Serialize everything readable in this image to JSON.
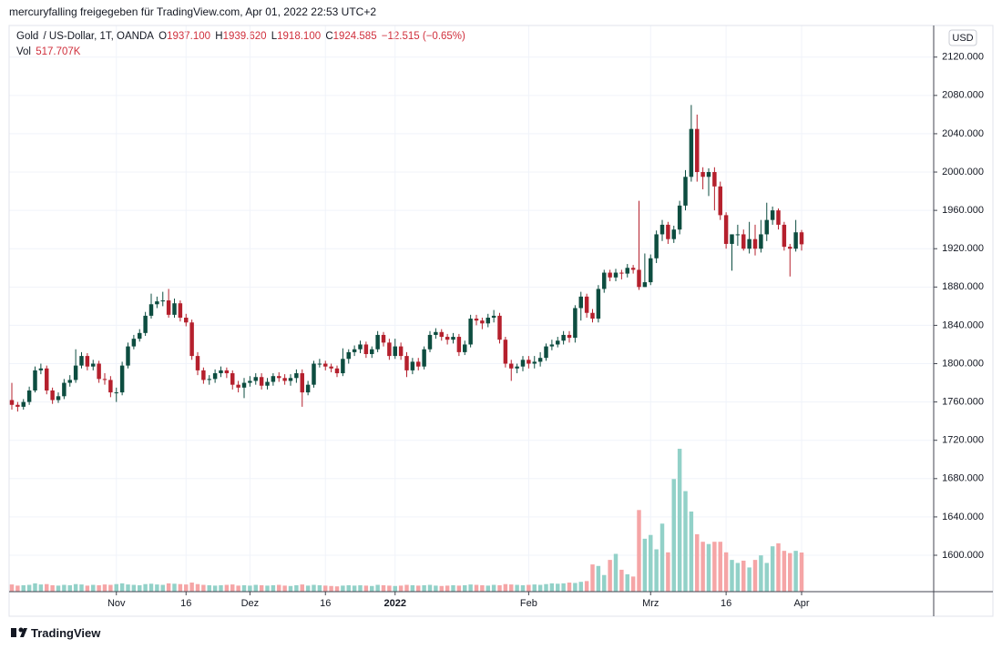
{
  "header": {
    "title": "mercuryfalling freigegeben für TradingView.com, Apr 01, 2022 22:53 UTC+2"
  },
  "legend": {
    "symbol": "Gold",
    "description": "/ US-Dollar, 1T, OANDA",
    "open_label": "O",
    "open": "1937.100",
    "high_label": "H",
    "high": "1939.620",
    "low_label": "L",
    "low": "1918.100",
    "close_label": "C",
    "close": "1924.585",
    "change": "−12.515 (−0.65%)",
    "volume_label": "Vol",
    "volume": "517.707K"
  },
  "currency": "USD",
  "brand": "TradingView",
  "chart_data": {
    "type": "candlestick",
    "up_color": "#0d4d40",
    "down_color": "#b5202d",
    "volume_up_color": "#92d1c8",
    "volume_down_color": "#f5a5a6",
    "grid": true,
    "ylim": [
      1562,
      2153
    ],
    "vlim": [
      0,
      7490
    ],
    "yticks": [
      {
        "value": 1600,
        "label": "1600.000"
      },
      {
        "value": 1640,
        "label": "1640.000"
      },
      {
        "value": 1680,
        "label": "1680.000"
      },
      {
        "value": 1720,
        "label": "1720.000"
      },
      {
        "value": 1760,
        "label": "1760.000"
      },
      {
        "value": 1800,
        "label": "1800.000"
      },
      {
        "value": 1840,
        "label": "1840.000"
      },
      {
        "value": 1880,
        "label": "1880.000"
      },
      {
        "value": 1920,
        "label": "1920.000"
      },
      {
        "value": 1960,
        "label": "1960.000"
      },
      {
        "value": 2000,
        "label": "2000.000"
      },
      {
        "value": 2040,
        "label": "2040.000"
      },
      {
        "value": 2080,
        "label": "2080.000"
      },
      {
        "value": 2120,
        "label": "2120.000"
      }
    ],
    "categories": [
      null,
      null,
      null,
      null,
      null,
      null,
      null,
      null,
      null,
      null,
      null,
      null,
      null,
      null,
      null,
      null,
      null,
      null,
      "Nov",
      null,
      null,
      null,
      null,
      null,
      null,
      null,
      null,
      null,
      null,
      null,
      "16",
      null,
      null,
      null,
      null,
      null,
      null,
      null,
      null,
      null,
      null,
      "Dez",
      null,
      null,
      null,
      null,
      null,
      null,
      null,
      null,
      null,
      null,
      null,
      null,
      "16",
      null,
      null,
      null,
      null,
      null,
      null,
      null,
      null,
      null,
      null,
      null,
      "2022",
      null,
      null,
      null,
      null,
      null,
      null,
      null,
      null,
      null,
      null,
      null,
      null,
      null,
      null,
      null,
      null,
      null,
      null,
      null,
      null,
      null,
      null,
      "Feb",
      null,
      null,
      null,
      null,
      null,
      null,
      null,
      null,
      null,
      null,
      null,
      null,
      null,
      null,
      null,
      null,
      null,
      null,
      null,
      null,
      "Mrz",
      null,
      null,
      null,
      null,
      null,
      null,
      null,
      null,
      null,
      null,
      null,
      null,
      "16",
      null,
      null,
      null,
      null,
      null,
      null,
      null,
      null,
      null,
      null,
      null,
      null,
      "Apr"
    ],
    "open": [
      1762,
      1757,
      1755,
      1760,
      1772,
      1793,
      1795,
      1772,
      1762,
      1766,
      1780,
      1783,
      1798,
      1808,
      1797,
      1800,
      1784,
      1783,
      1770,
      1770,
      1798,
      1818,
      1826,
      1832,
      1850,
      1862,
      1865,
      1866,
      1851,
      1863,
      1848,
      1843,
      1808,
      1793,
      1783,
      1784,
      1790,
      1793,
      1790,
      1778,
      1775,
      1780,
      1782,
      1786,
      1777,
      1781,
      1787,
      1785,
      1782,
      1785,
      1790,
      1770,
      1778,
      1800,
      1800,
      1797,
      1795,
      1790,
      1805,
      1812,
      1815,
      1820,
      1810,
      1815,
      1830,
      1822,
      1808,
      1818,
      1808,
      1793,
      1802,
      1797,
      1815,
      1830,
      1833,
      1828,
      1825,
      1828,
      1812,
      1820,
      1847,
      1845,
      1842,
      1848,
      1850,
      1825,
      1800,
      1795,
      1797,
      1804,
      1800,
      1802,
      1806,
      1818,
      1820,
      1824,
      1830,
      1827,
      1858,
      1870,
      1853,
      1847,
      1878,
      1895,
      1890,
      1895,
      1894,
      1900,
      1898,
      1880,
      1885,
      1910,
      1935,
      1945,
      1930,
      1940,
      1965,
      1995,
      2045,
      2000,
      1995,
      2000,
      1985,
      1955,
      1925,
      1935,
      1935,
      1920,
      1930,
      1920,
      1935,
      1950,
      1960,
      1945,
      1922,
      1920,
      1937.1
    ],
    "high": [
      1780,
      1760,
      1763,
      1776,
      1797,
      1800,
      1798,
      1775,
      1770,
      1784,
      1788,
      1815,
      1812,
      1811,
      1804,
      1803,
      1790,
      1787,
      1775,
      1802,
      1822,
      1830,
      1836,
      1854,
      1873,
      1870,
      1875,
      1878,
      1868,
      1866,
      1852,
      1846,
      1812,
      1796,
      1788,
      1794,
      1797,
      1796,
      1793,
      1782,
      1785,
      1787,
      1790,
      1790,
      1785,
      1790,
      1791,
      1789,
      1789,
      1794,
      1794,
      1782,
      1803,
      1805,
      1803,
      1800,
      1798,
      1816,
      1815,
      1819,
      1824,
      1823,
      1818,
      1834,
      1833,
      1826,
      1826,
      1822,
      1812,
      1806,
      1806,
      1818,
      1834,
      1837,
      1836,
      1831,
      1832,
      1831,
      1824,
      1851,
      1851,
      1848,
      1852,
      1856,
      1853,
      1828,
      1804,
      1800,
      1808,
      1808,
      1808,
      1812,
      1821,
      1825,
      1828,
      1834,
      1834,
      1861,
      1875,
      1873,
      1857,
      1882,
      1898,
      1898,
      1899,
      1898,
      1904,
      1903,
      1970,
      1915,
      1914,
      1939,
      1950,
      1948,
      1944,
      1970,
      2002,
      2070,
      2060,
      2005,
      2004,
      2005,
      1990,
      1958,
      1930,
      1945,
      1940,
      1948,
      1945,
      1950,
      1968,
      1964,
      1962,
      1948,
      1925,
      1950,
      1939.62
    ],
    "low": [
      1752,
      1750,
      1752,
      1757,
      1770,
      1789,
      1768,
      1758,
      1759,
      1763,
      1776,
      1780,
      1795,
      1793,
      1793,
      1780,
      1778,
      1765,
      1760,
      1767,
      1795,
      1815,
      1823,
      1829,
      1847,
      1858,
      1860,
      1848,
      1848,
      1844,
      1839,
      1804,
      1788,
      1779,
      1778,
      1780,
      1786,
      1785,
      1773,
      1770,
      1764,
      1776,
      1778,
      1773,
      1773,
      1777,
      1781,
      1778,
      1777,
      1780,
      1755,
      1767,
      1775,
      1796,
      1793,
      1791,
      1786,
      1787,
      1800,
      1808,
      1811,
      1806,
      1806,
      1812,
      1818,
      1804,
      1805,
      1804,
      1786,
      1789,
      1793,
      1794,
      1812,
      1826,
      1824,
      1820,
      1821,
      1808,
      1809,
      1817,
      1840,
      1836,
      1838,
      1843,
      1821,
      1796,
      1782,
      1790,
      1792,
      1795,
      1795,
      1797,
      1803,
      1814,
      1817,
      1820,
      1822,
      1822,
      1845,
      1848,
      1843,
      1843,
      1874,
      1886,
      1886,
      1888,
      1890,
      1894,
      1877,
      1880,
      1882,
      1905,
      1928,
      1925,
      1926,
      1935,
      1960,
      1990,
      1990,
      1982,
      1975,
      1960,
      1950,
      1920,
      1897,
      1923,
      1918,
      1915,
      1913,
      1916,
      1928,
      1945,
      1940,
      1918,
      1891,
      1917,
      1918.1
    ],
    "close": [
      1757,
      1755,
      1760,
      1772,
      1793,
      1795,
      1772,
      1762,
      1766,
      1780,
      1783,
      1798,
      1808,
      1797,
      1800,
      1784,
      1783,
      1770,
      1770,
      1798,
      1818,
      1826,
      1832,
      1850,
      1862,
      1865,
      1866,
      1851,
      1863,
      1848,
      1843,
      1808,
      1793,
      1783,
      1784,
      1790,
      1793,
      1790,
      1778,
      1775,
      1780,
      1782,
      1786,
      1777,
      1781,
      1787,
      1785,
      1782,
      1785,
      1790,
      1770,
      1778,
      1800,
      1800,
      1797,
      1795,
      1790,
      1805,
      1812,
      1815,
      1820,
      1810,
      1815,
      1830,
      1822,
      1808,
      1818,
      1808,
      1793,
      1802,
      1797,
      1815,
      1830,
      1833,
      1828,
      1825,
      1828,
      1812,
      1820,
      1847,
      1845,
      1842,
      1848,
      1850,
      1825,
      1800,
      1795,
      1797,
      1804,
      1800,
      1802,
      1806,
      1818,
      1820,
      1824,
      1830,
      1827,
      1858,
      1870,
      1853,
      1847,
      1878,
      1895,
      1890,
      1895,
      1894,
      1900,
      1898,
      1880,
      1885,
      1910,
      1935,
      1945,
      1930,
      1940,
      1965,
      1995,
      2045,
      2000,
      1995,
      2000,
      1985,
      1955,
      1925,
      1935,
      1935,
      1920,
      1930,
      1920,
      1935,
      1950,
      1960,
      1945,
      1922,
      1920,
      1937.1,
      1924.585
    ],
    "volume": [
      95,
      80,
      85,
      90,
      110,
      95,
      100,
      85,
      80,
      90,
      85,
      100,
      95,
      80,
      90,
      85,
      95,
      90,
      100,
      110,
      95,
      90,
      85,
      100,
      105,
      95,
      90,
      110,
      105,
      100,
      95,
      120,
      100,
      90,
      85,
      80,
      85,
      90,
      95,
      80,
      85,
      80,
      90,
      85,
      80,
      85,
      90,
      80,
      75,
      85,
      95,
      80,
      90,
      85,
      80,
      75,
      70,
      80,
      85,
      80,
      85,
      80,
      75,
      90,
      85,
      80,
      75,
      80,
      90,
      85,
      80,
      85,
      90,
      80,
      75,
      80,
      85,
      80,
      85,
      95,
      90,
      85,
      80,
      90,
      85,
      100,
      95,
      90,
      85,
      90,
      95,
      90,
      100,
      110,
      105,
      110,
      120,
      115,
      130,
      140,
      360,
      340,
      220,
      420,
      500,
      290,
      230,
      200,
      1080,
      700,
      750,
      560,
      900,
      520,
      1490,
      1890,
      1330,
      1060,
      760,
      660,
      630,
      660,
      660,
      520,
      420,
      380,
      410,
      320,
      420,
      480,
      380,
      600,
      640,
      540,
      510,
      540,
      517.707
    ]
  }
}
